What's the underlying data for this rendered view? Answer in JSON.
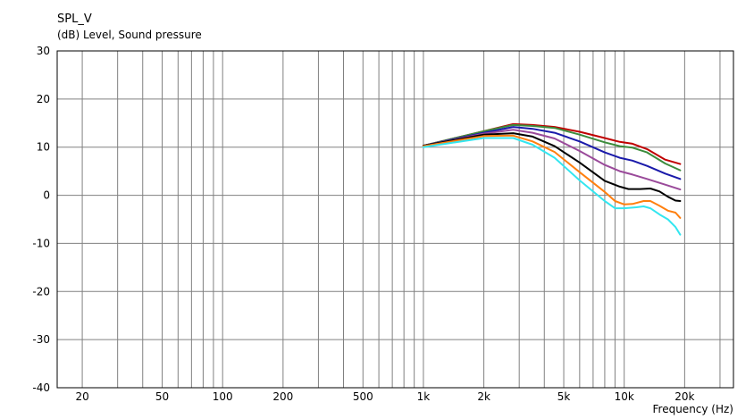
{
  "chart_data": {
    "type": "line",
    "title": "SPL_V",
    "ylabel": "(dB)  Level, Sound pressure",
    "xlabel": "Frequency  (Hz)",
    "x_scale": "log",
    "xlim": [
      15,
      35000
    ],
    "ylim": [
      -40,
      30
    ],
    "yticks": [
      30,
      20,
      10,
      0,
      -10,
      -20,
      -30,
      -40
    ],
    "ytick_labels": [
      "30",
      "20",
      "10",
      "0",
      "-10",
      "-20",
      "-30",
      "-40"
    ],
    "xticks": [
      20,
      50,
      100,
      200,
      500,
      1000,
      2000,
      5000,
      10000,
      20000
    ],
    "xtick_labels": [
      "20",
      "50",
      "100",
      "200",
      "500",
      "1k",
      "2k",
      "5k",
      "10k",
      "20k"
    ],
    "grid": true,
    "series": [
      {
        "color": "#c00000",
        "x": [
          1000,
          2000,
          2800,
          3500,
          4500,
          6000,
          8000,
          9500,
          11000,
          13000,
          16000,
          19000
        ],
        "y": [
          10.3,
          13.3,
          14.8,
          14.6,
          14.2,
          13.2,
          11.9,
          11.1,
          10.7,
          9.6,
          7.4,
          6.5
        ]
      },
      {
        "color": "#3c8c3c",
        "x": [
          1000,
          2000,
          2800,
          3500,
          4500,
          6000,
          8000,
          9500,
          11000,
          13000,
          16000,
          19000
        ],
        "y": [
          10.3,
          13.3,
          14.6,
          14.4,
          14.0,
          12.6,
          11.0,
          10.2,
          9.9,
          8.9,
          6.6,
          5.2
        ]
      },
      {
        "color": "#1a1aaa",
        "x": [
          1000,
          2000,
          2800,
          3500,
          4500,
          6000,
          8000,
          9500,
          11000,
          13000,
          16000,
          19000
        ],
        "y": [
          10.3,
          13.0,
          14.2,
          13.8,
          13.0,
          11.2,
          8.9,
          7.8,
          7.2,
          6.1,
          4.5,
          3.4
        ]
      },
      {
        "color": "#9a4a9a",
        "x": [
          1000,
          2000,
          2800,
          3500,
          4500,
          6000,
          8000,
          9500,
          11000,
          13000,
          16000,
          19000
        ],
        "y": [
          10.3,
          12.8,
          13.6,
          13.0,
          11.8,
          9.2,
          6.3,
          5.0,
          4.3,
          3.4,
          2.2,
          1.2
        ]
      },
      {
        "color": "#000000",
        "x": [
          1000,
          2000,
          2800,
          3500,
          4500,
          6000,
          8000,
          9500,
          10500,
          12000,
          13500,
          15000,
          16500,
          18000,
          19000
        ],
        "y": [
          10.3,
          12.6,
          12.9,
          12.2,
          10.2,
          6.8,
          3.0,
          1.8,
          1.3,
          1.3,
          1.4,
          0.8,
          -0.3,
          -1.1,
          -1.2
        ]
      },
      {
        "color": "#ff7f0e",
        "x": [
          1000,
          2000,
          2800,
          3500,
          4500,
          6000,
          8000,
          9000,
          10000,
          11000,
          12500,
          13500,
          15000,
          16500,
          18000,
          19000
        ],
        "y": [
          10.2,
          12.3,
          12.4,
          11.2,
          9.0,
          4.8,
          0.7,
          -1.2,
          -1.9,
          -1.8,
          -1.2,
          -1.2,
          -2.2,
          -3.2,
          -3.6,
          -4.7
        ]
      },
      {
        "color": "#33e6f0",
        "x": [
          1000,
          2000,
          2800,
          3500,
          4500,
          6000,
          8000,
          9000,
          10000,
          11500,
          12500,
          13500,
          15000,
          16500,
          18000,
          19000
        ],
        "y": [
          10.0,
          11.9,
          11.9,
          10.5,
          7.8,
          3.1,
          -1.2,
          -2.7,
          -2.7,
          -2.5,
          -2.3,
          -2.7,
          -4.0,
          -5.0,
          -6.6,
          -8.2
        ]
      }
    ]
  }
}
